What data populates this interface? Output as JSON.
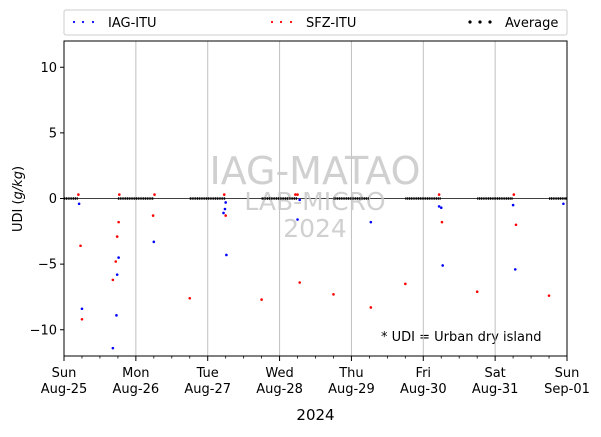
{
  "chart_data": {
    "type": "scatter",
    "xlabel": "2024",
    "ylabel_prefix": "UDI (",
    "ylabel_unit": "g/kg",
    "ylabel_suffix": ")",
    "ylim": [
      -12,
      12
    ],
    "xlim_days": [
      0,
      7
    ],
    "yticks": [
      -10,
      -5,
      0,
      5,
      10
    ],
    "xticks": [
      {
        "day": 0,
        "line1": "Sun",
        "line2": "Aug-25"
      },
      {
        "day": 1,
        "line1": "Mon",
        "line2": "Aug-26"
      },
      {
        "day": 2,
        "line1": "Tue",
        "line2": "Aug-27"
      },
      {
        "day": 3,
        "line1": "Wed",
        "line2": "Aug-28"
      },
      {
        "day": 4,
        "line1": "Thu",
        "line2": "Aug-29"
      },
      {
        "day": 5,
        "line1": "Fri",
        "line2": "Aug-30"
      },
      {
        "day": 6,
        "line1": "Sat",
        "line2": "Aug-31"
      },
      {
        "day": 7,
        "line1": "Sun",
        "line2": "Sep-01"
      }
    ],
    "grid": "vertical",
    "legend_position": "top",
    "series": [
      {
        "name": "IAG-ITU",
        "color": "#0000ff",
        "points": [
          [
            0.21,
            -0.4
          ],
          [
            0.25,
            -8.4
          ],
          [
            0.68,
            -11.4
          ],
          [
            0.73,
            -8.9
          ],
          [
            0.74,
            -5.8
          ],
          [
            0.76,
            -4.5
          ],
          [
            1.25,
            -3.3
          ],
          [
            2.25,
            -0.3
          ],
          [
            2.22,
            -1.1
          ],
          [
            2.24,
            -0.8
          ],
          [
            2.26,
            -4.3
          ],
          [
            3.25,
            -1.6
          ],
          [
            3.28,
            -0.1
          ],
          [
            4.27,
            -1.8
          ],
          [
            5.22,
            -0.6
          ],
          [
            5.25,
            -0.7
          ],
          [
            5.27,
            -5.1
          ],
          [
            6.25,
            -0.5
          ],
          [
            6.28,
            -5.4
          ],
          [
            6.95,
            -0.4
          ]
        ]
      },
      {
        "name": "SFZ-ITU",
        "color": "#ff0000",
        "points": [
          [
            0.2,
            0.3
          ],
          [
            0.23,
            -3.6
          ],
          [
            0.25,
            -9.2
          ],
          [
            0.68,
            -6.2
          ],
          [
            0.72,
            -4.8
          ],
          [
            0.74,
            -2.9
          ],
          [
            0.76,
            -1.8
          ],
          [
            0.77,
            0.3
          ],
          [
            1.24,
            -1.3
          ],
          [
            1.26,
            0.3
          ],
          [
            1.75,
            -7.6
          ],
          [
            2.23,
            0.3
          ],
          [
            2.25,
            -1.3
          ],
          [
            2.75,
            -7.7
          ],
          [
            3.22,
            0.3
          ],
          [
            3.25,
            0.3
          ],
          [
            3.28,
            -6.4
          ],
          [
            3.75,
            -7.3
          ],
          [
            4.27,
            -8.3
          ],
          [
            4.75,
            -6.5
          ],
          [
            5.22,
            0.3
          ],
          [
            5.26,
            -1.8
          ],
          [
            5.75,
            -7.1
          ],
          [
            6.26,
            0.3
          ],
          [
            6.29,
            -2.0
          ],
          [
            6.75,
            -7.4
          ]
        ]
      },
      {
        "name": "Average",
        "color": "#000000",
        "flat_segments": [
          [
            0.0,
            0.2
          ],
          [
            0.75,
            1.25
          ],
          [
            1.75,
            2.25
          ],
          [
            2.75,
            3.25
          ],
          [
            3.75,
            4.25
          ],
          [
            4.75,
            5.25
          ],
          [
            5.75,
            6.25
          ],
          [
            6.75,
            7.0
          ]
        ]
      }
    ],
    "watermark": {
      "line1": "IAG-MATAO",
      "line2": "LAB-MICRO",
      "line3": "2024"
    },
    "annotation": "* UDI = Urban dry island"
  }
}
